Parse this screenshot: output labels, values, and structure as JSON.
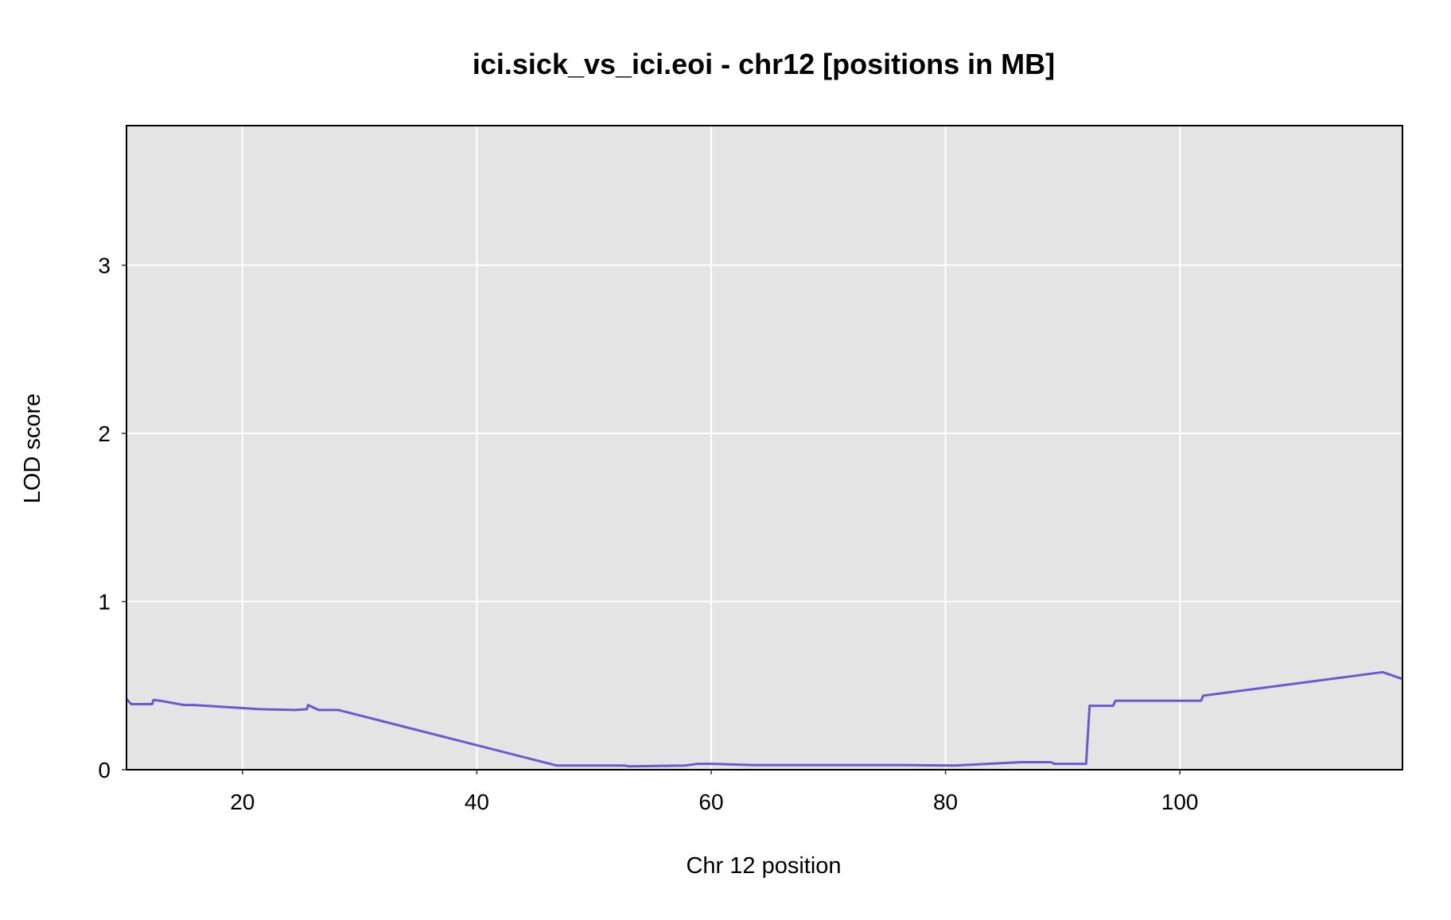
{
  "chart_data": {
    "type": "line",
    "title": "ici.sick_vs_ici.eoi - chr12 [positions in MB]",
    "xlabel": "Chr 12 position",
    "ylabel": "LOD score",
    "xlim": [
      10.1,
      119.0
    ],
    "ylim": [
      0,
      3.83
    ],
    "xticks": [
      20,
      40,
      60,
      80,
      100
    ],
    "yticks": [
      0,
      1,
      2,
      3
    ],
    "grid": true,
    "colors": {
      "line": "#6A5ACD",
      "panel": "#E4E4E4",
      "grid": "#FFFFFF",
      "frame": "#000000",
      "baseline": "#1E1E96"
    },
    "series": [
      {
        "x": [
          10.1,
          10.5,
          12.3,
          12.4,
          13.0,
          15.0,
          15.8,
          21.5,
          24.5,
          25.5,
          25.6,
          26.5,
          28.2,
          46.8,
          52.6,
          53.0,
          57.8,
          58.8,
          60.2,
          63.5,
          76.0,
          80.8,
          86.5,
          89.0,
          89.3,
          92.0,
          92.3,
          94.3,
          94.5,
          101.8,
          102.0,
          117.3,
          119.0
        ],
        "y": [
          0.42,
          0.39,
          0.39,
          0.415,
          0.41,
          0.385,
          0.385,
          0.36,
          0.355,
          0.36,
          0.385,
          0.355,
          0.355,
          0.025,
          0.025,
          0.02,
          0.025,
          0.035,
          0.035,
          0.028,
          0.028,
          0.025,
          0.045,
          0.045,
          0.035,
          0.035,
          0.38,
          0.38,
          0.41,
          0.41,
          0.44,
          0.58,
          0.54
        ]
      }
    ]
  }
}
